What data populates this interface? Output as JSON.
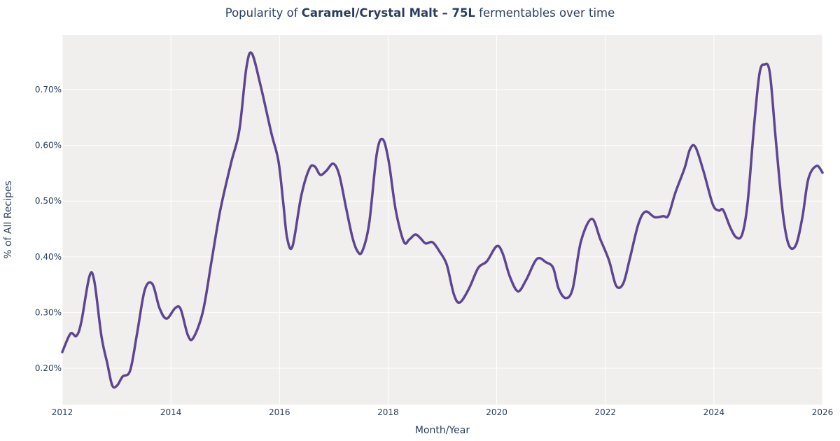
{
  "chart_data": {
    "type": "line",
    "title": {
      "prefix": "Popularity of ",
      "bold": "Caramel/Crystal Malt – 75L",
      "suffix": " fermentables over time"
    },
    "xlabel": "Month/Year",
    "ylabel": "% of All Recipes",
    "xlim": [
      2012,
      2026
    ],
    "ylim": [
      0.1347,
      0.798
    ],
    "x_ticks": [
      "2012",
      "2014",
      "2016",
      "2018",
      "2020",
      "2022",
      "2024",
      "2026"
    ],
    "y_ticks": [
      {
        "v": 0.2,
        "label": "0.20%"
      },
      {
        "v": 0.3,
        "label": "0.30%"
      },
      {
        "v": 0.4,
        "label": "0.40%"
      },
      {
        "v": 0.5,
        "label": "0.50%"
      },
      {
        "v": 0.6,
        "label": "0.60%"
      },
      {
        "v": 0.7,
        "label": "0.70%"
      }
    ],
    "grid": true,
    "colors": {
      "line": "#5e4592",
      "plot_bg": "#f0efed",
      "grid": "#ffffff",
      "text": "#2a3f5f"
    },
    "x": [
      2012.0,
      2012.15,
      2012.26,
      2012.35,
      2012.5,
      2012.59,
      2012.72,
      2012.83,
      2012.92,
      2013.01,
      2013.11,
      2013.25,
      2013.38,
      2013.52,
      2013.66,
      2013.79,
      2013.92,
      2014.08,
      2014.18,
      2014.31,
      2014.41,
      2014.59,
      2014.75,
      2014.91,
      2015.11,
      2015.26,
      2015.39,
      2015.49,
      2015.65,
      2015.85,
      2015.98,
      2016.07,
      2016.14,
      2016.24,
      2016.4,
      2016.55,
      2016.65,
      2016.75,
      2016.86,
      2016.99,
      2017.1,
      2017.23,
      2017.34,
      2017.43,
      2017.52,
      2017.65,
      2017.79,
      2017.9,
      2018.01,
      2018.14,
      2018.29,
      2018.39,
      2018.5,
      2018.59,
      2018.69,
      2018.82,
      2018.95,
      2019.08,
      2019.21,
      2019.32,
      2019.49,
      2019.66,
      2019.82,
      2020.0,
      2020.11,
      2020.24,
      2020.39,
      2020.54,
      2020.74,
      2020.91,
      2021.04,
      2021.14,
      2021.27,
      2021.4,
      2021.55,
      2021.75,
      2021.91,
      2022.07,
      2022.2,
      2022.33,
      2022.45,
      2022.61,
      2022.74,
      2022.91,
      2023.07,
      2023.16,
      2023.29,
      2023.46,
      2023.56,
      2023.66,
      2023.81,
      2023.98,
      2024.09,
      2024.17,
      2024.3,
      2024.41,
      2024.52,
      2024.62,
      2024.74,
      2024.84,
      2024.93,
      2025.03,
      2025.14,
      2025.27,
      2025.38,
      2025.51,
      2025.63,
      2025.74,
      2025.89,
      2026.0
    ],
    "y": [
      0.229,
      0.262,
      0.258,
      0.283,
      0.365,
      0.356,
      0.258,
      0.208,
      0.169,
      0.169,
      0.185,
      0.196,
      0.264,
      0.341,
      0.351,
      0.308,
      0.289,
      0.308,
      0.306,
      0.26,
      0.254,
      0.302,
      0.393,
      0.484,
      0.569,
      0.627,
      0.739,
      0.765,
      0.708,
      0.622,
      0.572,
      0.496,
      0.434,
      0.419,
      0.509,
      0.558,
      0.562,
      0.547,
      0.554,
      0.567,
      0.547,
      0.486,
      0.436,
      0.411,
      0.409,
      0.459,
      0.584,
      0.611,
      0.572,
      0.484,
      0.427,
      0.431,
      0.44,
      0.434,
      0.424,
      0.426,
      0.409,
      0.386,
      0.333,
      0.318,
      0.343,
      0.38,
      0.392,
      0.419,
      0.406,
      0.365,
      0.338,
      0.358,
      0.396,
      0.39,
      0.38,
      0.343,
      0.326,
      0.343,
      0.427,
      0.468,
      0.431,
      0.393,
      0.348,
      0.352,
      0.396,
      0.459,
      0.481,
      0.471,
      0.473,
      0.474,
      0.515,
      0.559,
      0.593,
      0.597,
      0.553,
      0.494,
      0.483,
      0.484,
      0.453,
      0.435,
      0.44,
      0.496,
      0.635,
      0.729,
      0.745,
      0.73,
      0.61,
      0.478,
      0.421,
      0.421,
      0.471,
      0.54,
      0.563,
      0.551
    ]
  }
}
